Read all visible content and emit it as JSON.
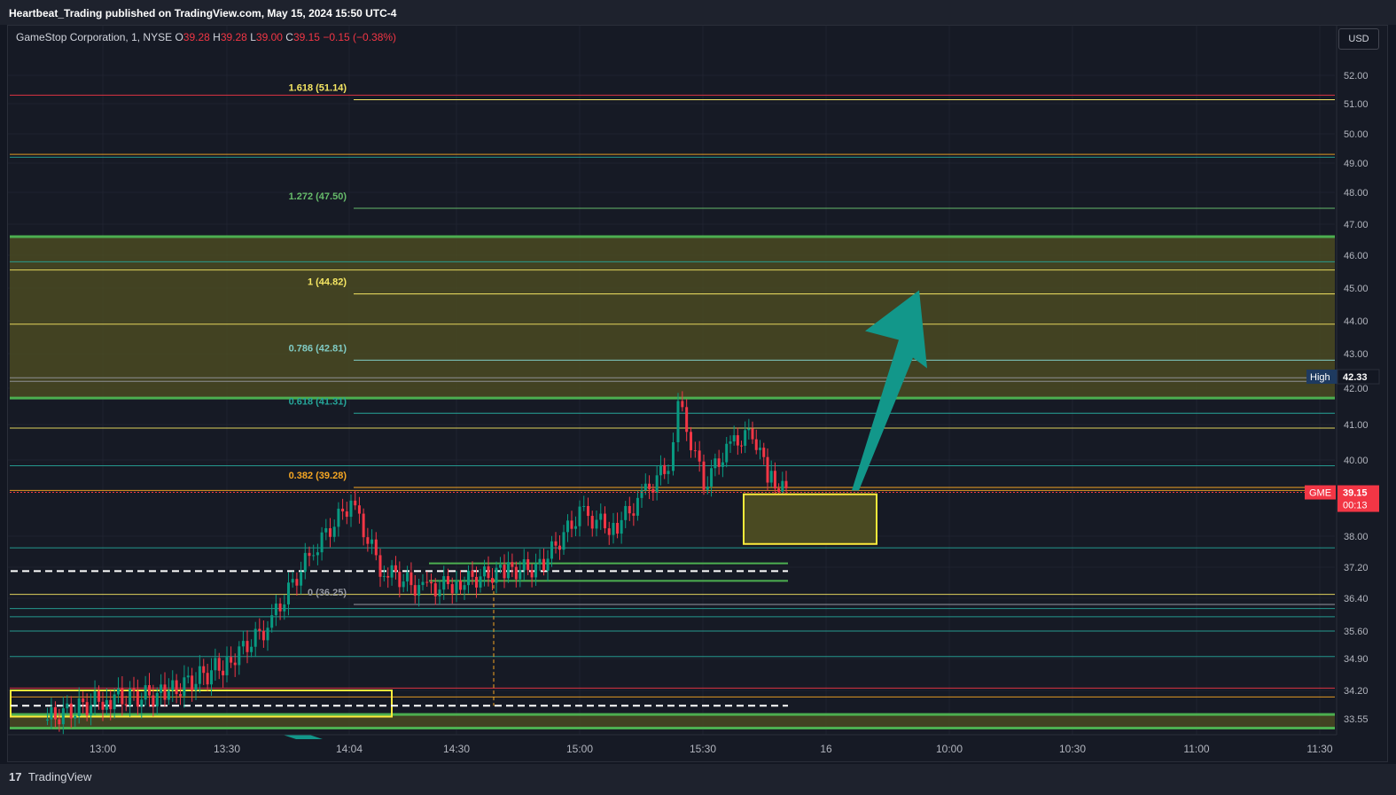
{
  "header": {
    "publish_text": "Heartbeat_Trading published on TradingView.com, May 15, 2024 15:50 UTC-4"
  },
  "legend": {
    "symbol": "GameStop Corporation, 1, NYSE",
    "open_label": "O",
    "open": "39.28",
    "high_label": "H",
    "high": "39.28",
    "low_label": "L",
    "low": "39.00",
    "close_label": "C",
    "close": "39.15",
    "change": "−0.15 (−0.38%)"
  },
  "currency": "USD",
  "footer": {
    "brand": "TradingView"
  },
  "colors": {
    "background": "#161a25",
    "up": "#089981",
    "down": "#f23645",
    "fib_yellow": "#f5e663",
    "zone_fill": "#4a4a22",
    "green_line": "#4caf50",
    "arrow": "#12978a"
  },
  "chart_data": {
    "type": "candlestick",
    "symbol": "GME",
    "y_axis_ticks": [
      "52.00",
      "51.00",
      "50.00",
      "49.00",
      "48.00",
      "47.00",
      "46.00",
      "45.00",
      "44.00",
      "43.00",
      "42.00",
      "41.00",
      "40.00",
      "38.00",
      "37.20",
      "36.40",
      "35.60",
      "34.90",
      "34.20",
      "33.55"
    ],
    "x_axis_ticks": [
      "13:00",
      "13:30",
      "14:04",
      "14:30",
      "15:00",
      "15:30",
      "16",
      "10:00",
      "10:30",
      "11:00",
      "11:30"
    ],
    "fib_levels": [
      {
        "label": "1.618 (51.14)",
        "value": 51.14
      },
      {
        "label": "1.272 (47.50)",
        "value": 47.5
      },
      {
        "label": "1 (44.82)",
        "value": 44.82
      },
      {
        "label": "0.786 (42.81)",
        "value": 42.81
      },
      {
        "label": "0.618 (41.31)",
        "value": 41.31
      },
      {
        "label": "0.382 (39.28)",
        "value": 39.28
      },
      {
        "label": "0 (36.25)",
        "value": 36.25
      }
    ],
    "horizontal_lines": [
      51.3,
      49.3,
      49.2,
      46.6,
      45.8,
      45.55,
      43.9,
      42.3,
      42.2,
      41.73,
      40.9,
      39.85,
      39.2,
      37.7,
      36.5,
      36.15,
      35.95,
      35.6,
      34.95,
      34.25,
      34.05
    ],
    "zones": [
      {
        "from": 41.73,
        "to": 46.6
      },
      {
        "from": 33.3,
        "to": 33.65
      }
    ],
    "target_box": {
      "from": 37.8,
      "to": 39.1
    },
    "projection_arrow": {
      "from_time": "15:54",
      "from_price": 39.2,
      "to_time": "16:15",
      "to_price": 44.5
    },
    "ohlc": [
      {
        "t": "12:45",
        "close": 33.5
      },
      {
        "t": "13:00",
        "close": 34.0
      },
      {
        "t": "13:15",
        "close": 34.1
      },
      {
        "t": "13:30",
        "close": 34.8
      },
      {
        "t": "13:40",
        "close": 35.7
      },
      {
        "t": "13:50",
        "close": 37.5
      },
      {
        "t": "14:04",
        "close": 38.9
      },
      {
        "t": "14:12",
        "close": 37.2
      },
      {
        "t": "14:22",
        "close": 36.6
      },
      {
        "t": "14:30",
        "close": 36.8
      },
      {
        "t": "14:42",
        "close": 37.1
      },
      {
        "t": "14:52",
        "close": 37.2
      },
      {
        "t": "15:00",
        "close": 38.6
      },
      {
        "t": "15:08",
        "close": 38.2
      },
      {
        "t": "15:15",
        "close": 39.0
      },
      {
        "t": "15:22",
        "close": 39.9
      },
      {
        "t": "15:27",
        "close": 41.6
      },
      {
        "t": "15:31",
        "close": 39.4
      },
      {
        "t": "15:38",
        "close": 40.4
      },
      {
        "t": "15:45",
        "close": 40.8
      },
      {
        "t": "15:48",
        "close": 39.6
      },
      {
        "t": "15:50",
        "close": 39.15
      }
    ],
    "markers": [
      {
        "label": "High",
        "value": "42.33"
      },
      {
        "label": "GME",
        "value": "39.15",
        "sub": "00:13"
      }
    ]
  }
}
